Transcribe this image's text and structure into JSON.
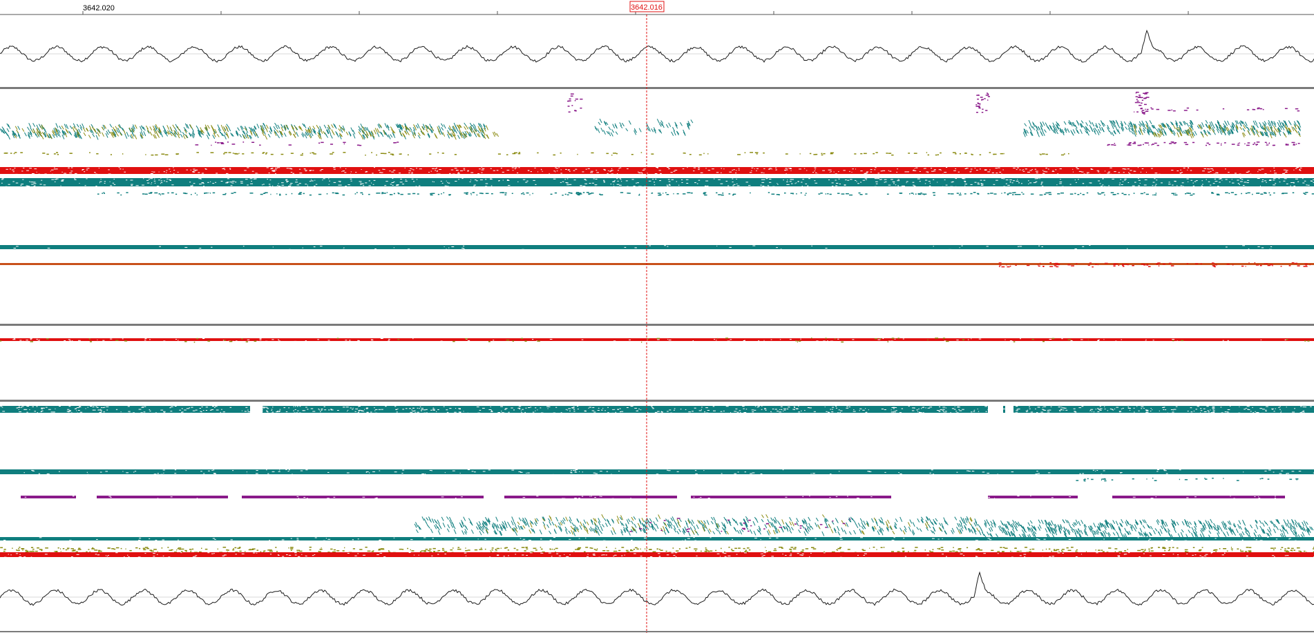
{
  "ruler": {
    "left_label": "3642.020",
    "cursor_label": "3642.016"
  },
  "colors": {
    "background": "#ffffff",
    "red": "#e01010",
    "teal": "#0f7e7e",
    "olive": "#8a8a10",
    "purple": "#8a1a8a",
    "trace": "#1a1a1a",
    "divider": "#7a7a7a",
    "cursor": "#e01010",
    "gridline": "#d8d8d8"
  },
  "tracks": [
    {
      "name": "trace-top",
      "kind": "trace"
    },
    {
      "name": "lane-group-1",
      "kind": "events"
    },
    {
      "name": "lane-group-2",
      "kind": "events"
    },
    {
      "name": "lane-group-3",
      "kind": "events"
    },
    {
      "name": "lane-group-4",
      "kind": "events"
    },
    {
      "name": "trace-bottom",
      "kind": "trace"
    }
  ]
}
